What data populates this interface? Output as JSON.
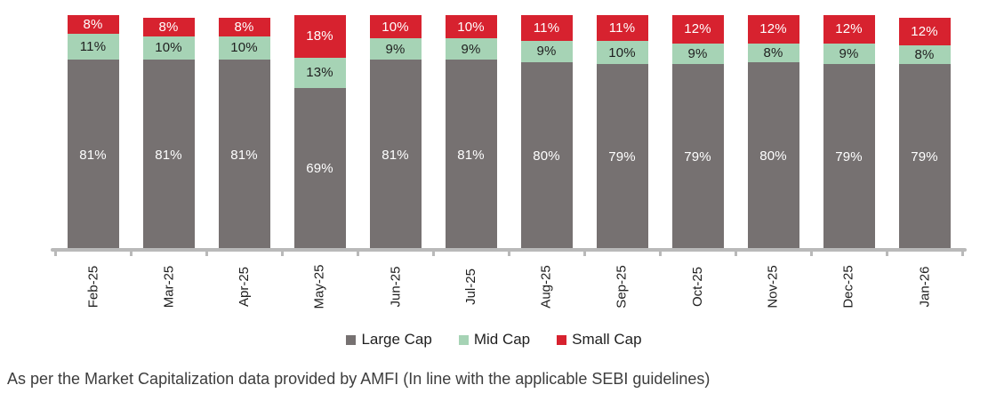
{
  "chart_data": {
    "type": "bar",
    "stacked": true,
    "title": "",
    "categories": [
      "Feb-25",
      "Mar-25",
      "Apr-25",
      "May-25",
      "Jun-25",
      "Jul-25",
      "Aug-25",
      "Sep-25",
      "Oct-25",
      "Nov-25",
      "Dec-25",
      "Jan-26"
    ],
    "series": [
      {
        "name": "Large Cap",
        "color": "#767171",
        "label_color": "#ffffff",
        "values": [
          81,
          81,
          81,
          69,
          81,
          81,
          80,
          79,
          79,
          80,
          79,
          79
        ]
      },
      {
        "name": "Mid Cap",
        "color": "#a6d3b5",
        "label_color": "#1f1f1f",
        "values": [
          11,
          10,
          10,
          13,
          9,
          9,
          9,
          10,
          9,
          8,
          9,
          8
        ]
      },
      {
        "name": "Small Cap",
        "color": "#d7222f",
        "label_color": "#ffffff",
        "values": [
          8,
          8,
          8,
          18,
          10,
          10,
          11,
          11,
          12,
          12,
          12,
          12
        ]
      }
    ],
    "value_suffix": "%",
    "ylim": [
      0,
      100
    ],
    "grid": false,
    "legend_position": "bottom",
    "xlabel_rotation": -90,
    "axis_color": "#b9b9b9"
  },
  "footnote": "As per the Market Capitalization data provided by AMFI (In line with the applicable SEBI guidelines)"
}
